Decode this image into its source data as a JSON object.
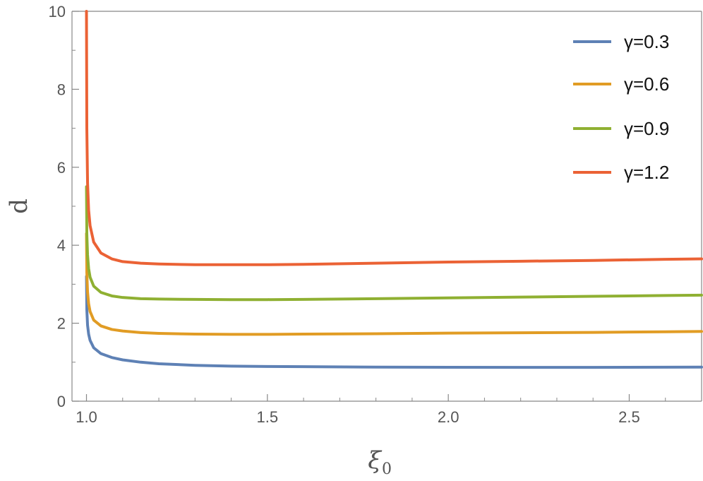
{
  "chart_data": {
    "type": "line",
    "xlabel": "ξ",
    "xlabel_sub": "0",
    "ylabel": "d",
    "xlim": [
      0.96,
      2.7
    ],
    "ylim": [
      0,
      10
    ],
    "x_ticks": [
      {
        "value": 1.0,
        "label": "1.0"
      },
      {
        "value": 1.5,
        "label": "1.5"
      },
      {
        "value": 2.0,
        "label": "2.0"
      },
      {
        "value": 2.5,
        "label": "2.5"
      }
    ],
    "x_minor_ticks": [
      1.1,
      1.2,
      1.3,
      1.4,
      1.6,
      1.7,
      1.8,
      1.9,
      2.1,
      2.2,
      2.3,
      2.4,
      2.6
    ],
    "y_ticks": [
      {
        "value": 0,
        "label": "0"
      },
      {
        "value": 2,
        "label": "2"
      },
      {
        "value": 4,
        "label": "4"
      },
      {
        "value": 6,
        "label": "6"
      },
      {
        "value": 8,
        "label": "8"
      },
      {
        "value": 10,
        "label": "10"
      }
    ],
    "y_minor_ticks": [
      1,
      3,
      5,
      7,
      9
    ],
    "legend_position": "top-right",
    "grid": false,
    "series": [
      {
        "name": "γ=0.3",
        "color": "#5e81b5",
        "x": [
          1.0,
          1.001,
          1.003,
          1.006,
          1.01,
          1.02,
          1.04,
          1.07,
          1.1,
          1.15,
          1.2,
          1.3,
          1.4,
          1.5,
          1.6,
          1.8,
          2.0,
          2.2,
          2.4,
          2.6,
          2.7
        ],
        "y": [
          3.2,
          2.35,
          1.95,
          1.72,
          1.56,
          1.37,
          1.22,
          1.12,
          1.06,
          1.0,
          0.96,
          0.92,
          0.9,
          0.89,
          0.885,
          0.875,
          0.87,
          0.868,
          0.868,
          0.872,
          0.875
        ]
      },
      {
        "name": "γ=0.6",
        "color": "#e19c24",
        "x": [
          1.0,
          1.001,
          1.003,
          1.006,
          1.01,
          1.02,
          1.04,
          1.07,
          1.1,
          1.15,
          1.2,
          1.3,
          1.4,
          1.5,
          1.6,
          1.8,
          2.0,
          2.2,
          2.4,
          2.6,
          2.7
        ],
        "y": [
          4.3,
          3.3,
          2.8,
          2.5,
          2.3,
          2.08,
          1.93,
          1.84,
          1.8,
          1.76,
          1.74,
          1.72,
          1.715,
          1.715,
          1.72,
          1.73,
          1.745,
          1.755,
          1.765,
          1.78,
          1.79
        ]
      },
      {
        "name": "γ=0.9",
        "color": "#8fb032",
        "x": [
          1.0,
          1.001,
          1.003,
          1.006,
          1.01,
          1.02,
          1.04,
          1.07,
          1.1,
          1.15,
          1.2,
          1.3,
          1.4,
          1.5,
          1.6,
          1.8,
          2.0,
          2.2,
          2.4,
          2.6,
          2.7
        ],
        "y": [
          5.5,
          4.3,
          3.75,
          3.4,
          3.18,
          2.95,
          2.79,
          2.7,
          2.66,
          2.63,
          2.62,
          2.61,
          2.605,
          2.605,
          2.61,
          2.63,
          2.65,
          2.67,
          2.69,
          2.71,
          2.72
        ]
      },
      {
        "name": "γ=1.2",
        "color": "#eb6235",
        "x": [
          1.0,
          1.001,
          1.003,
          1.006,
          1.01,
          1.02,
          1.04,
          1.07,
          1.1,
          1.15,
          1.2,
          1.3,
          1.4,
          1.5,
          1.6,
          1.8,
          2.0,
          2.2,
          2.4,
          2.6,
          2.7
        ],
        "y": [
          10.0,
          7.0,
          5.6,
          4.9,
          4.5,
          4.08,
          3.8,
          3.65,
          3.58,
          3.54,
          3.52,
          3.5,
          3.5,
          3.5,
          3.51,
          3.54,
          3.57,
          3.59,
          3.61,
          3.64,
          3.65
        ]
      }
    ]
  }
}
